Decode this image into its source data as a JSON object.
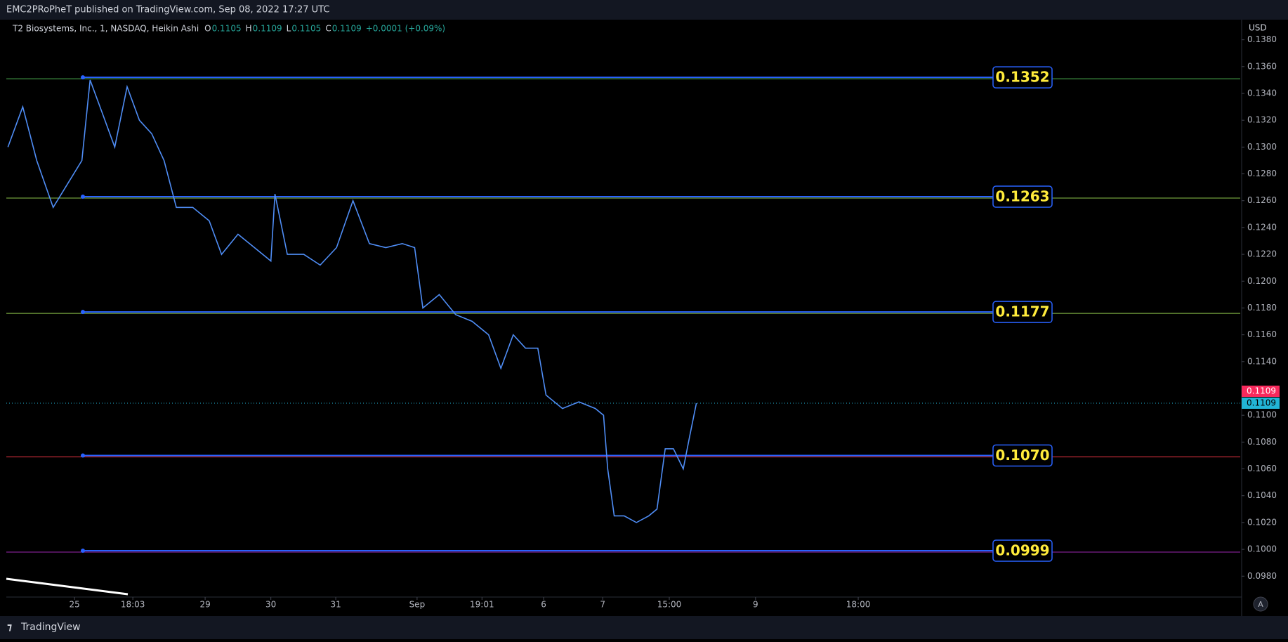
{
  "header": {
    "text": "EMC2PRoPheT published on TradingView.com, Sep 08, 2022 17:27 UTC"
  },
  "footer": {
    "brand": "TradingView",
    "button": "A"
  },
  "chart_data": {
    "type": "line",
    "legend": {
      "symbol": "T2 Biosystems, Inc., 1, NASDAQ, Heikin Ashi",
      "fields": [
        {
          "key": "O",
          "value": 0.1105
        },
        {
          "key": "H",
          "value": 0.1109
        },
        {
          "key": "L",
          "value": 0.1105
        },
        {
          "key": "C",
          "value": 0.1109
        }
      ],
      "change": "+0.0001 (+0.09%)"
    },
    "y_unit": "USD",
    "x": [
      2,
      20,
      37,
      57,
      77,
      92,
      102,
      117,
      132,
      147,
      162,
      177,
      192,
      207,
      227,
      247,
      262,
      282,
      302,
      322,
      327,
      342,
      362,
      382,
      402,
      422,
      442,
      462,
      482,
      497,
      507,
      527,
      547,
      567,
      587,
      602,
      617,
      632,
      647,
      657,
      677,
      697,
      717,
      727,
      732,
      740,
      752,
      767,
      782,
      792,
      802,
      812,
      824,
      832,
      840
    ],
    "series": [
      {
        "name": "T2 Biosystems",
        "color": "#4f8df5",
        "values": [
          0.13,
          0.133,
          0.129,
          0.1255,
          0.1275,
          0.129,
          0.135,
          0.1325,
          0.13,
          0.1345,
          0.132,
          0.131,
          0.129,
          0.1255,
          0.1255,
          0.1245,
          0.122,
          0.1235,
          0.1225,
          0.1215,
          0.1265,
          0.122,
          0.122,
          0.1212,
          0.1225,
          0.126,
          0.1228,
          0.1225,
          0.1228,
          0.1225,
          0.118,
          0.119,
          0.1175,
          0.117,
          0.116,
          0.1135,
          0.116,
          0.115,
          0.115,
          0.1115,
          0.1105,
          0.111,
          0.1105,
          0.11,
          0.106,
          0.1025,
          0.1025,
          0.102,
          0.1025,
          0.103,
          0.1075,
          0.1075,
          0.106,
          0.1085,
          0.1109
        ]
      }
    ],
    "xlim": [
      0,
      1502
    ],
    "xticks": [
      {
        "value": 83,
        "label": "25"
      },
      {
        "value": 154,
        "label": "18:03"
      },
      {
        "value": 242,
        "label": "29"
      },
      {
        "value": 322,
        "label": "30"
      },
      {
        "value": 401,
        "label": "31"
      },
      {
        "value": 500,
        "label": "Sep"
      },
      {
        "value": 579,
        "label": "19:01"
      },
      {
        "value": 654,
        "label": "6"
      },
      {
        "value": 726,
        "label": "7"
      },
      {
        "value": 807,
        "label": "15:00"
      },
      {
        "value": 912,
        "label": "9"
      },
      {
        "value": 1037,
        "label": "18:00"
      }
    ],
    "ylim": [
      0.0966,
      0.1395
    ],
    "yticks": [
      {
        "value": 0.138,
        "label": "0.1380"
      },
      {
        "value": 0.136,
        "label": "0.1360"
      },
      {
        "value": 0.134,
        "label": "0.1340"
      },
      {
        "value": 0.132,
        "label": "0.1320"
      },
      {
        "value": 0.13,
        "label": "0.1300"
      },
      {
        "value": 0.128,
        "label": "0.1280"
      },
      {
        "value": 0.126,
        "label": "0.1260"
      },
      {
        "value": 0.124,
        "label": "0.1240"
      },
      {
        "value": 0.122,
        "label": "0.1220"
      },
      {
        "value": 0.12,
        "label": "0.1200"
      },
      {
        "value": 0.118,
        "label": "0.1180"
      },
      {
        "value": 0.116,
        "label": "0.1160"
      },
      {
        "value": 0.114,
        "label": "0.1140"
      },
      {
        "value": 0.11,
        "label": "0.1100"
      },
      {
        "value": 0.108,
        "label": "0.1080"
      },
      {
        "value": 0.106,
        "label": "0.1060"
      },
      {
        "value": 0.104,
        "label": "0.1040"
      },
      {
        "value": 0.102,
        "label": "0.1020"
      },
      {
        "value": 0.1,
        "label": "0.1000"
      },
      {
        "value": 0.098,
        "label": "0.0980"
      }
    ],
    "levels": [
      {
        "value": 0.1352,
        "color": "#4caf50"
      },
      {
        "value": 0.1263,
        "color": "#8bc34a"
      },
      {
        "value": 0.1177,
        "color": "#8bc34a"
      },
      {
        "value": 0.107,
        "label": "0.1070",
        "color": "#f23645"
      },
      {
        "value": 0.0999,
        "color": "#9c27b0"
      }
    ],
    "level_line_color": "#2962ff",
    "last_price": 0.1109,
    "last_price_colors": [
      "#f7295c",
      "#22b5d6"
    ]
  }
}
